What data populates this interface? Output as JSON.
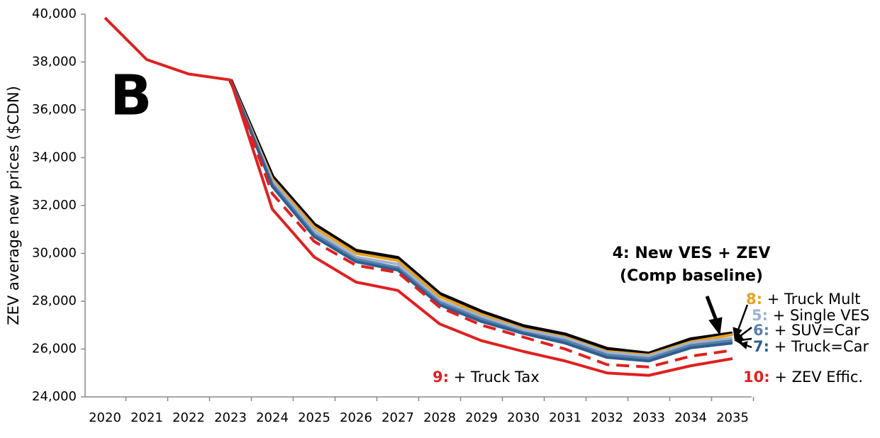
{
  "chart_data": {
    "type": "line",
    "panel_label": "B",
    "y_label": "ZEV average new prices ($CDN)",
    "categories": [
      "2020",
      "2021",
      "2022",
      "2023",
      "2024",
      "2025",
      "2026",
      "2027",
      "2028",
      "2029",
      "2030",
      "2031",
      "2032",
      "2033",
      "2034",
      "2035"
    ],
    "ylim": [
      24000,
      40000
    ],
    "yticks": [
      {
        "value": 24000,
        "label": "24,000"
      },
      {
        "value": 26000,
        "label": "26,000"
      },
      {
        "value": 28000,
        "label": "28,000"
      },
      {
        "value": 30000,
        "label": "30,000"
      },
      {
        "value": 32000,
        "label": "32,000"
      },
      {
        "value": 34000,
        "label": "34,000"
      },
      {
        "value": 36000,
        "label": "36,000"
      },
      {
        "value": 38000,
        "label": "38,000"
      },
      {
        "value": 40000,
        "label": "40,000"
      }
    ],
    "series": [
      {
        "name": "4: New VES + ZEV",
        "note": "(Comp baseline)",
        "color": "#000000",
        "values": [
          null,
          null,
          null,
          37250,
          33200,
          31200,
          30100,
          29800,
          28300,
          27550,
          26950,
          26600,
          26000,
          25800,
          26400,
          26650
        ]
      },
      {
        "tag": "8:",
        "name": "+ Truck Mult",
        "color": "#e8a020",
        "values": [
          null,
          null,
          null,
          37250,
          33100,
          31100,
          30000,
          29700,
          28200,
          27450,
          26850,
          26500,
          25900,
          25750,
          26300,
          26600
        ]
      },
      {
        "tag": "5:",
        "name": "+ Single VES",
        "color": "#9db3cf",
        "values": [
          null,
          null,
          null,
          37250,
          33000,
          30950,
          29850,
          29550,
          28050,
          27350,
          26800,
          26450,
          25850,
          25700,
          26250,
          26450
        ]
      },
      {
        "tag": "6:",
        "name": "+ SUV=Car",
        "color": "#5a80ad",
        "values": [
          null,
          null,
          null,
          37250,
          32900,
          30800,
          29750,
          29400,
          27950,
          27250,
          26700,
          26350,
          25750,
          25600,
          26150,
          26350
        ]
      },
      {
        "tag": "7:",
        "name": "+ Truck=Car",
        "color": "#2e5f8f",
        "values": [
          null,
          null,
          null,
          37250,
          32800,
          30700,
          29650,
          29300,
          27850,
          27150,
          26650,
          26250,
          25650,
          25500,
          26050,
          26250
        ]
      },
      {
        "tag": "9:",
        "name": "+ Truck Tax",
        "color": "#e02020",
        "dashed": true,
        "values": [
          null,
          null,
          null,
          37250,
          32500,
          30500,
          29500,
          29200,
          27750,
          27000,
          26500,
          26000,
          25350,
          25250,
          25700,
          25950
        ]
      },
      {
        "tag": "10:",
        "name": "+ ZEV Effic.",
        "color": "#e02020",
        "values": [
          39850,
          38100,
          37500,
          37250,
          31850,
          29850,
          28800,
          28450,
          27050,
          26350,
          25900,
          25500,
          25000,
          24900,
          25300,
          25600
        ]
      }
    ]
  }
}
